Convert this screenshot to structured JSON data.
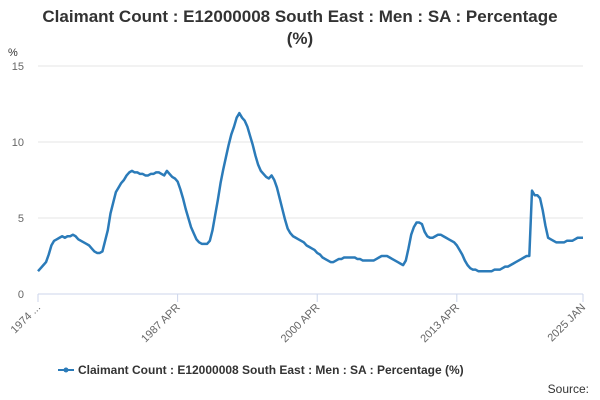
{
  "chart_data": {
    "type": "line",
    "title": "Claimant Count : E12000008 South East : Men : SA : Percentage (%)",
    "y_unit": "%",
    "source": "Source:",
    "ylim": [
      0,
      15
    ],
    "yticks": [
      0,
      5,
      10,
      15
    ],
    "grid": true,
    "legend": "bottom",
    "categories": [
      "1974 ...",
      null,
      null,
      null,
      null,
      null,
      null,
      null,
      null,
      null,
      null,
      null,
      null,
      null,
      null,
      null,
      null,
      null,
      null,
      null,
      null,
      null,
      null,
      null,
      null,
      null,
      null,
      null,
      null,
      null,
      null,
      null,
      null,
      null,
      null,
      null,
      null,
      null,
      null,
      null,
      null,
      null,
      null,
      null,
      null,
      null,
      null,
      null,
      null,
      null,
      null,
      null,
      "1987 APR",
      null,
      null,
      null,
      null,
      null,
      null,
      null,
      null,
      null,
      null,
      null,
      null,
      null,
      null,
      null,
      null,
      null,
      null,
      null,
      null,
      null,
      null,
      null,
      null,
      null,
      null,
      null,
      null,
      null,
      null,
      null,
      null,
      null,
      null,
      null,
      null,
      null,
      null,
      null,
      null,
      null,
      null,
      null,
      null,
      null,
      null,
      null,
      null,
      null,
      null,
      null,
      "2000 APR",
      null,
      null,
      null,
      null,
      null,
      null,
      null,
      null,
      null,
      null,
      null,
      null,
      null,
      null,
      null,
      null,
      null,
      null,
      null,
      null,
      null,
      null,
      null,
      null,
      null,
      null,
      null,
      null,
      null,
      null,
      null,
      null,
      null,
      null,
      null,
      null,
      null,
      null,
      null,
      null,
      null,
      null,
      null,
      null,
      null,
      null,
      null,
      null,
      null,
      null,
      null,
      "2013 APR",
      null,
      null,
      null,
      null,
      null,
      null,
      null,
      null,
      null,
      null,
      null,
      null,
      null,
      null,
      null,
      null,
      null,
      null,
      null,
      null,
      null,
      null,
      null,
      null,
      null,
      null,
      null,
      null,
      null,
      null,
      null,
      null,
      null,
      null,
      null,
      null,
      null,
      null,
      null,
      null,
      null,
      null,
      null,
      null,
      null,
      null,
      "2025 JAN"
    ],
    "series": [
      {
        "name": "Claimant Count : E12000008 South East : Men : SA : Percentage (%)",
        "color": "#2b7bb9",
        "values": [
          1.5,
          1.7,
          1.9,
          2.1,
          2.6,
          3.2,
          3.5,
          3.6,
          3.7,
          3.8,
          3.7,
          3.8,
          3.8,
          3.9,
          3.8,
          3.6,
          3.5,
          3.4,
          3.3,
          3.2,
          3.0,
          2.8,
          2.7,
          2.7,
          2.8,
          3.5,
          4.2,
          5.3,
          6.0,
          6.7,
          7.0,
          7.3,
          7.5,
          7.8,
          8.0,
          8.1,
          8.0,
          8.0,
          7.9,
          7.9,
          7.8,
          7.8,
          7.9,
          7.9,
          8.0,
          8.0,
          7.9,
          7.8,
          8.1,
          7.9,
          7.7,
          7.6,
          7.4,
          6.9,
          6.3,
          5.6,
          5.0,
          4.4,
          4.0,
          3.6,
          3.4,
          3.3,
          3.3,
          3.3,
          3.5,
          4.2,
          5.2,
          6.2,
          7.3,
          8.2,
          9.0,
          9.8,
          10.5,
          11.0,
          11.6,
          11.9,
          11.6,
          11.4,
          11.0,
          10.4,
          9.8,
          9.1,
          8.5,
          8.1,
          7.9,
          7.7,
          7.6,
          7.8,
          7.5,
          7.0,
          6.3,
          5.6,
          4.9,
          4.3,
          4.0,
          3.8,
          3.7,
          3.6,
          3.5,
          3.4,
          3.2,
          3.1,
          3.0,
          2.9,
          2.7,
          2.6,
          2.4,
          2.3,
          2.2,
          2.1,
          2.1,
          2.2,
          2.3,
          2.3,
          2.4,
          2.4,
          2.4,
          2.4,
          2.4,
          2.3,
          2.3,
          2.2,
          2.2,
          2.2,
          2.2,
          2.2,
          2.3,
          2.4,
          2.5,
          2.5,
          2.5,
          2.4,
          2.3,
          2.2,
          2.1,
          2.0,
          1.9,
          2.2,
          3.0,
          3.9,
          4.4,
          4.7,
          4.7,
          4.6,
          4.1,
          3.8,
          3.7,
          3.7,
          3.8,
          3.9,
          3.9,
          3.8,
          3.7,
          3.6,
          3.5,
          3.4,
          3.2,
          2.9,
          2.6,
          2.2,
          1.9,
          1.7,
          1.6,
          1.6,
          1.5,
          1.5,
          1.5,
          1.5,
          1.5,
          1.5,
          1.6,
          1.6,
          1.6,
          1.7,
          1.8,
          1.8,
          1.9,
          2.0,
          2.1,
          2.2,
          2.3,
          2.4,
          2.5,
          2.5,
          6.8,
          6.5,
          6.5,
          6.3,
          5.5,
          4.5,
          3.7,
          3.6,
          3.5,
          3.4,
          3.4,
          3.4,
          3.4,
          3.5,
          3.5,
          3.5,
          3.6,
          3.7,
          3.7,
          3.7
        ]
      }
    ]
  }
}
